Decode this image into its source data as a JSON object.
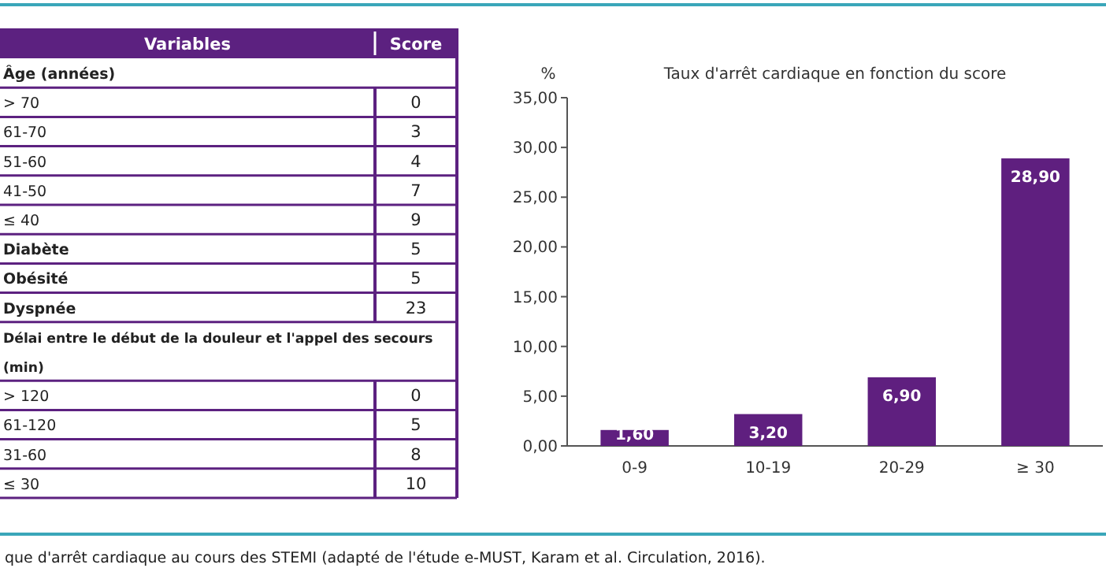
{
  "chart_data": [
    {
      "type": "other",
      "xlabel": "Variables",
      "ylabel": "Score",
      "categories": [
        "Âge (années)",
        "> 70",
        "61-70",
        "51-60",
        "41-50",
        "≤ 40",
        "Diabète",
        "Obésité",
        "Dyspnée",
        "Délai entre le début de la douleur et l'appel des secours (min)",
        "> 120",
        "61-120",
        "31-60",
        "≤ 30"
      ],
      "values": [
        null,
        0,
        3,
        4,
        7,
        9,
        5,
        5,
        23,
        null,
        0,
        5,
        8,
        10
      ],
      "color": "#5c2180",
      "data_labels": true,
      "annotations": [
        "que d'arrêt cardiaque au cours des STEMI (adapté de l'étude e-MUST, Karam et al. Circulation, 2016)."
      ]
    },
    {
      "type": "bar",
      "title": "Taux d'arrêt cardiaque en fonction du score",
      "ylabel": "%",
      "categories": [
        "0-9",
        "10-19",
        "20-29",
        "≥ 30"
      ],
      "values": [
        1.6,
        3.2,
        6.9,
        28.9
      ],
      "value_labels": [
        "1,60",
        "3,20",
        "6,90",
        "28,90"
      ],
      "color": "#5f1f7f",
      "ylim": [
        0,
        35
      ],
      "yticks": [
        {
          "value": 0,
          "label": "0,00"
        },
        {
          "value": 5,
          "label": "5,00"
        },
        {
          "value": 10,
          "label": "10,00"
        },
        {
          "value": 15,
          "label": "15,00"
        },
        {
          "value": 20,
          "label": "20,00"
        },
        {
          "value": 25,
          "label": "25,00"
        },
        {
          "value": 30,
          "label": "30,00"
        },
        {
          "value": 35,
          "label": "35,00"
        }
      ]
    }
  ]
}
